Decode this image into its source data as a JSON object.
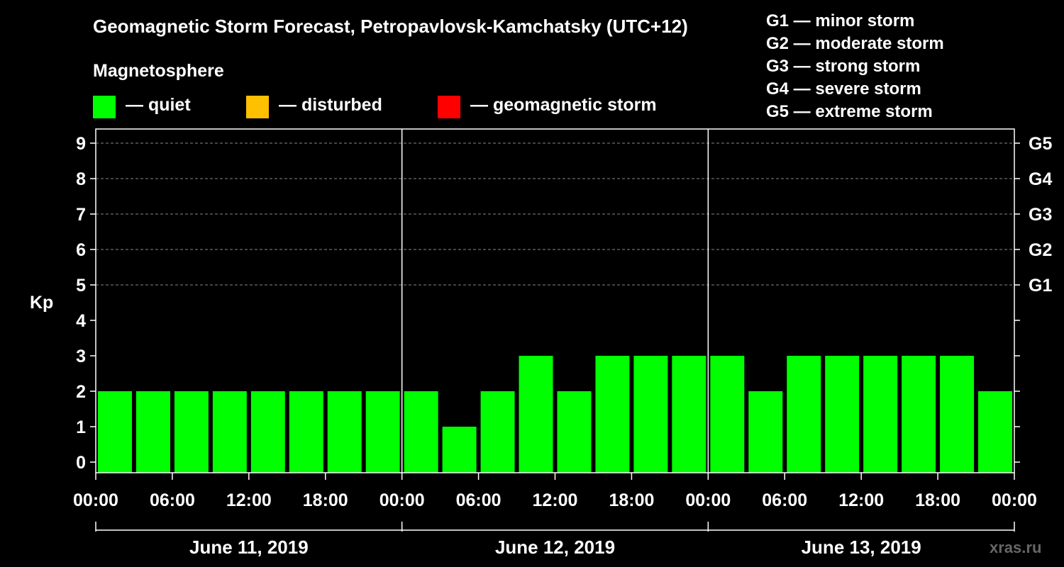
{
  "header": {
    "title": "Geomagnetic Storm Forecast, Petropavlovsk-Kamchatsky (UTC+12)",
    "magnetosphere_heading": "Magnetosphere"
  },
  "legend": [
    {
      "label": "— quiet",
      "color": "#00ff00"
    },
    {
      "label": "— disturbed",
      "color": "#ffc000"
    },
    {
      "label": "— geomagnetic storm",
      "color": "#ff0000"
    }
  ],
  "storm_scale": [
    "G1 — minor storm",
    "G2 — moderate storm",
    "G3 — strong storm",
    "G4 — severe storm",
    "G5 — extreme storm"
  ],
  "watermark": "xras.ru",
  "chart_data": {
    "type": "bar",
    "ylabel": "Kp",
    "ylim": [
      0,
      9
    ],
    "yticks": [
      0,
      1,
      2,
      3,
      4,
      5,
      6,
      7,
      8,
      9
    ],
    "grid": "dashed horizontal lines at Kp 5–9",
    "right_axis_labels": [
      {
        "kp": 5,
        "label": "G1"
      },
      {
        "kp": 6,
        "label": "G2"
      },
      {
        "kp": 7,
        "label": "G3"
      },
      {
        "kp": 8,
        "label": "G4"
      },
      {
        "kp": 9,
        "label": "G5"
      }
    ],
    "xtick_labels": [
      "00:00",
      "06:00",
      "12:00",
      "18:00",
      "00:00",
      "06:00",
      "12:00",
      "18:00",
      "00:00",
      "06:00",
      "12:00",
      "18:00",
      "00:00"
    ],
    "days": [
      "June 11, 2019",
      "June 12, 2019",
      "June 13, 2019"
    ],
    "bar_hours": 3,
    "values": [
      2,
      2,
      2,
      2,
      2,
      2,
      2,
      2,
      2,
      1,
      2,
      3,
      2,
      3,
      3,
      3,
      3,
      2,
      3,
      3,
      3,
      3,
      3,
      2
    ],
    "colors": {
      "quiet": "#00ff00",
      "disturbed": "#ffc000",
      "storm": "#ff0000"
    }
  }
}
